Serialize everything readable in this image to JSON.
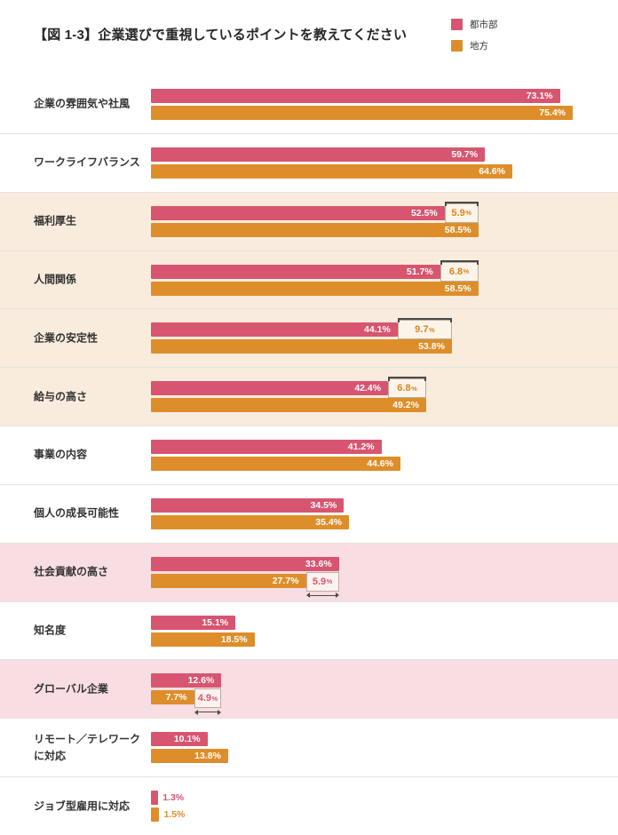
{
  "title": "【図 1-3】企業選びで重視しているポイントを教えてください",
  "legend": {
    "urban_label": "都市部",
    "regional_label": "地方"
  },
  "colors": {
    "urban": "#d75570",
    "regional": "#dd8e2a",
    "cream_band": "#f9ecdc",
    "pink_band": "#f8dde2",
    "diff_text_regional": "#d8851f",
    "diff_text_urban": "#d75570"
  },
  "chart_data": {
    "type": "bar",
    "orientation": "horizontal",
    "title": "【図 1-3】企業選びで重視しているポイントを教えてください",
    "value_suffix": "%",
    "xlim": [
      0,
      80
    ],
    "grid": false,
    "legend_position": "top-right",
    "legend": [
      "都市部",
      "地方"
    ],
    "categories": [
      "企業の雰囲気や社風",
      "ワークライフバランス",
      "福利厚生",
      "人間関係",
      "企業の安定性",
      "給与の高さ",
      "事業の内容",
      "個人の成長可能性",
      "社会貢献の高さ",
      "知名度",
      "グローバル企業",
      "リモート／テレワークに対応",
      "ジョブ型雇用に対応"
    ],
    "series": [
      {
        "name": "都市部",
        "color": "#d75570",
        "values": [
          73.1,
          59.7,
          52.5,
          51.7,
          44.1,
          42.4,
          41.2,
          34.5,
          33.6,
          15.1,
          12.6,
          10.1,
          1.3
        ]
      },
      {
        "name": "地方",
        "color": "#dd8e2a",
        "values": [
          75.4,
          64.6,
          58.5,
          58.5,
          53.8,
          49.2,
          44.6,
          35.4,
          27.7,
          18.5,
          7.7,
          13.8,
          1.5
        ]
      }
    ],
    "diff_annotations": [
      {
        "category": "福利厚生",
        "value": "5.9",
        "higher": "地方"
      },
      {
        "category": "人間関係",
        "value": "6.8",
        "higher": "地方"
      },
      {
        "category": "企業の安定性",
        "value": "9.7",
        "higher": "地方"
      },
      {
        "category": "給与の高さ",
        "value": "6.8",
        "higher": "地方"
      },
      {
        "category": "社会貢献の高さ",
        "value": "5.9",
        "higher": "都市部"
      },
      {
        "category": "グローバル企業",
        "value": "4.9",
        "higher": "都市部"
      }
    ],
    "band_highlights": [
      {
        "category": "福利厚生",
        "band": "cream"
      },
      {
        "category": "人間関係",
        "band": "cream"
      },
      {
        "category": "企業の安定性",
        "band": "cream"
      },
      {
        "category": "給与の高さ",
        "band": "cream"
      },
      {
        "category": "社会貢献の高さ",
        "band": "pink"
      },
      {
        "category": "グローバル企業",
        "band": "pink"
      }
    ]
  },
  "rows": [
    {
      "label": "企業の雰囲気や社風",
      "urban": 73.1,
      "regional": 75.4,
      "band": "white",
      "diff": null
    },
    {
      "label": "ワークライフバランス",
      "urban": 59.7,
      "regional": 64.6,
      "band": "white",
      "diff": null
    },
    {
      "label": "福利厚生",
      "urban": 52.5,
      "regional": 58.5,
      "band": "cream",
      "diff": {
        "value": "5.9",
        "higher": "regional"
      }
    },
    {
      "label": "人間関係",
      "urban": 51.7,
      "regional": 58.5,
      "band": "cream",
      "diff": {
        "value": "6.8",
        "higher": "regional"
      }
    },
    {
      "label": "企業の安定性",
      "urban": 44.1,
      "regional": 53.8,
      "band": "cream",
      "diff": {
        "value": "9.7",
        "higher": "regional"
      }
    },
    {
      "label": "給与の高さ",
      "urban": 42.4,
      "regional": 49.2,
      "band": "cream",
      "diff": {
        "value": "6.8",
        "higher": "regional"
      }
    },
    {
      "label": "事業の内容",
      "urban": 41.2,
      "regional": 44.6,
      "band": "white",
      "diff": null
    },
    {
      "label": "個人の成長可能性",
      "urban": 34.5,
      "regional": 35.4,
      "band": "white",
      "diff": null
    },
    {
      "label": "社会貢献の高さ",
      "urban": 33.6,
      "regional": 27.7,
      "band": "pink",
      "diff": {
        "value": "5.9",
        "higher": "urban"
      }
    },
    {
      "label": "知名度",
      "urban": 15.1,
      "regional": 18.5,
      "band": "white",
      "diff": null
    },
    {
      "label": "グローバル企業",
      "urban": 12.6,
      "regional": 7.7,
      "band": "pink",
      "diff": {
        "value": "4.9",
        "higher": "urban"
      }
    },
    {
      "label": "リモート／テレワーク\nに対応",
      "urban": 10.1,
      "regional": 13.8,
      "band": "white",
      "diff": null
    },
    {
      "label": "ジョブ型雇用に対応",
      "urban": 1.3,
      "regional": 1.5,
      "band": "white",
      "diff": null
    }
  ]
}
